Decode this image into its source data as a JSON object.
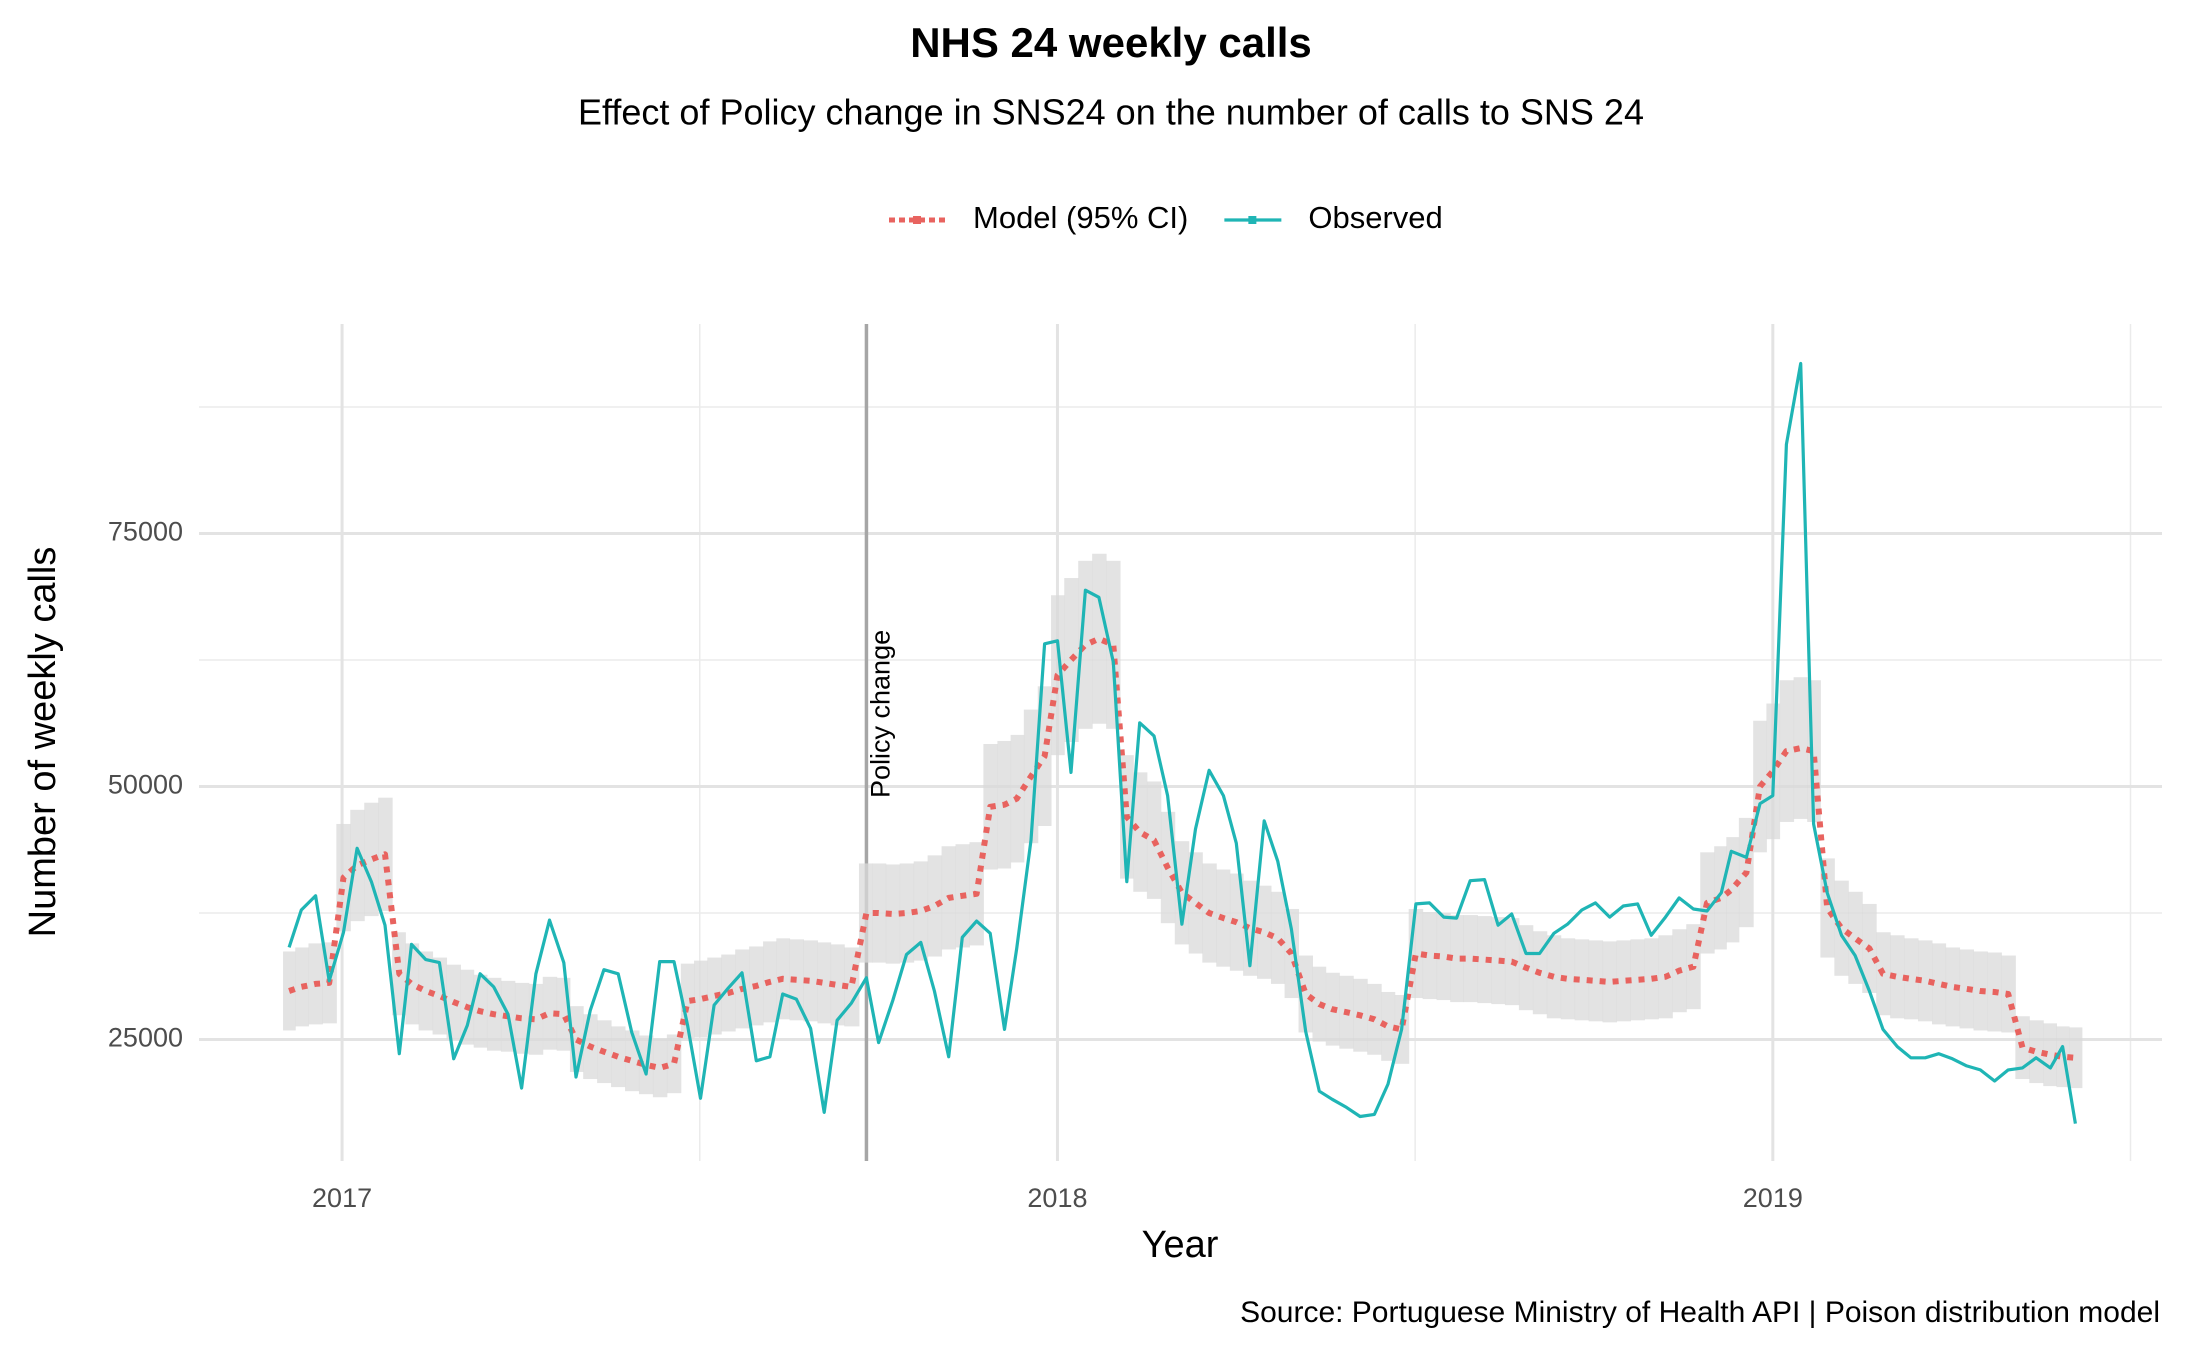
{
  "chart_data": {
    "type": "line",
    "title": "NHS 24 weekly calls",
    "subtitle": "Effect of Policy change in SNS24 on the number of calls to SNS 24",
    "x_label": "Year",
    "y_label": "Number of weekly calls",
    "caption": "Source: Portuguese Ministry of Health API  | Poison distribution model",
    "legend": "top",
    "grid": true,
    "xlim": [
      2016.8,
      2019.544
    ],
    "ylim": [
      13000,
      95700
    ],
    "xticks": [
      2017,
      2018,
      2019
    ],
    "yticks": [
      25000,
      50000,
      75000
    ],
    "x_minor_grid": [
      2017.5,
      2018.5,
      2019.5
    ],
    "y_minor_grid": [
      37500,
      62500,
      87500
    ],
    "annotations": [
      {
        "text": "Policy change",
        "x": 2017.733,
        "color": "#a6a6a6"
      }
    ],
    "x": [
      2016.926,
      2016.943,
      2016.963,
      2016.982,
      2017.002,
      2017.021,
      2017.041,
      2017.06,
      2017.08,
      2017.097,
      2017.117,
      2017.136,
      2017.156,
      2017.175,
      2017.193,
      2017.212,
      2017.232,
      2017.251,
      2017.271,
      2017.29,
      2017.31,
      2017.327,
      2017.347,
      2017.366,
      2017.386,
      2017.405,
      2017.425,
      2017.444,
      2017.464,
      2017.483,
      2017.501,
      2017.52,
      2017.54,
      2017.559,
      2017.579,
      2017.598,
      2017.616,
      2017.635,
      2017.655,
      2017.674,
      2017.692,
      2017.712,
      2017.733,
      2017.75,
      2017.77,
      2017.789,
      2017.809,
      2017.828,
      2017.848,
      2017.867,
      2017.887,
      2017.906,
      2017.926,
      2017.943,
      2017.963,
      2017.982,
      2018.0,
      2018.019,
      2018.039,
      2018.058,
      2018.078,
      2018.097,
      2018.115,
      2018.135,
      2018.154,
      2018.174,
      2018.193,
      2018.212,
      2018.232,
      2018.25,
      2018.269,
      2018.289,
      2018.308,
      2018.327,
      2018.347,
      2018.366,
      2018.384,
      2018.404,
      2018.423,
      2018.443,
      2018.462,
      2018.481,
      2018.501,
      2018.52,
      2018.54,
      2018.558,
      2018.577,
      2018.597,
      2018.616,
      2018.635,
      2018.655,
      2018.674,
      2018.694,
      2018.713,
      2018.733,
      2018.752,
      2018.772,
      2018.791,
      2018.811,
      2018.83,
      2018.85,
      2018.869,
      2018.889,
      2018.908,
      2018.928,
      2018.942,
      2018.963,
      2018.982,
      2019.0,
      2019.019,
      2019.039,
      2019.057,
      2019.076,
      2019.096,
      2019.115,
      2019.135,
      2019.154,
      2019.174,
      2019.193,
      2019.213,
      2019.232,
      2019.251,
      2019.271,
      2019.29,
      2019.31,
      2019.329,
      2019.349,
      2019.368,
      2019.388,
      2019.405,
      2019.423
    ],
    "series": [
      {
        "name": "Model (95% CI)",
        "color": "#e8635f",
        "band_color": "#d9d9d9",
        "values": [
          29800,
          30200,
          30500,
          30600,
          41000,
          42200,
          42800,
          43300,
          31500,
          30500,
          29800,
          29300,
          28700,
          28200,
          27800,
          27500,
          27300,
          27100,
          27000,
          27600,
          27500,
          25000,
          24300,
          23800,
          23300,
          22900,
          22500,
          22200,
          22600,
          28800,
          29000,
          29300,
          29600,
          30000,
          30300,
          30700,
          31000,
          30900,
          30800,
          30600,
          30400,
          30200,
          37500,
          37500,
          37400,
          37500,
          37700,
          38200,
          39000,
          39200,
          39400,
          48000,
          48200,
          48800,
          51000,
          53000,
          61000,
          62500,
          64000,
          64600,
          64000,
          47000,
          45500,
          44700,
          42000,
          39500,
          38500,
          37500,
          37000,
          36600,
          36000,
          35600,
          35000,
          33500,
          29500,
          28500,
          28000,
          27700,
          27400,
          27000,
          26300,
          26000,
          33500,
          33300,
          33200,
          33000,
          33000,
          32900,
          32800,
          32700,
          32100,
          31600,
          31200,
          31000,
          30900,
          30800,
          30700,
          30800,
          30900,
          31000,
          31200,
          31800,
          32200,
          38500,
          39000,
          39800,
          41500,
          50000,
          51500,
          53500,
          53800,
          53500,
          38000,
          36000,
          35000,
          34000,
          31500,
          31200,
          31000,
          30800,
          30500,
          30200,
          30000,
          29800,
          29700,
          29500,
          24200,
          23800,
          23500,
          23300,
          23200
        ],
        "lower": [
          25900,
          26300,
          26500,
          26600,
          35700,
          36700,
          37200,
          37700,
          27400,
          26500,
          25900,
          25500,
          25000,
          24500,
          24200,
          23900,
          23800,
          23600,
          23500,
          24000,
          23900,
          21800,
          21100,
          20700,
          20300,
          19900,
          19600,
          19300,
          19700,
          25100,
          25200,
          25500,
          25800,
          26100,
          26400,
          26700,
          27000,
          26900,
          26800,
          26600,
          26400,
          26300,
          32600,
          32600,
          32500,
          32600,
          32800,
          33200,
          33900,
          34100,
          34300,
          41800,
          41900,
          42500,
          44400,
          46100,
          53100,
          54400,
          55700,
          56200,
          55700,
          40900,
          39600,
          38900,
          36500,
          34400,
          33500,
          32600,
          32200,
          31800,
          31300,
          31000,
          30500,
          29100,
          25700,
          24800,
          24400,
          24100,
          23800,
          23500,
          22900,
          22600,
          29100,
          29000,
          28900,
          28700,
          28700,
          28600,
          28500,
          28400,
          27900,
          27500,
          27100,
          27000,
          26900,
          26800,
          26700,
          26800,
          26900,
          27000,
          27100,
          27700,
          28000,
          33500,
          33900,
          34600,
          36100,
          43500,
          44800,
          46500,
          46800,
          46500,
          33100,
          31300,
          30500,
          29600,
          27400,
          27100,
          27000,
          26800,
          26500,
          26300,
          26100,
          25900,
          25800,
          25700,
          21100,
          20700,
          20400,
          20300,
          20200
        ],
        "upper": [
          33700,
          34100,
          34500,
          34600,
          46300,
          47700,
          48400,
          48900,
          35600,
          34500,
          33700,
          33100,
          32400,
          31900,
          31400,
          31100,
          30800,
          30600,
          30500,
          31200,
          31100,
          28300,
          27500,
          26900,
          26300,
          25900,
          25400,
          25100,
          25500,
          32500,
          32800,
          33100,
          33400,
          33900,
          34200,
          34700,
          35000,
          34900,
          34800,
          34600,
          34400,
          34100,
          42400,
          42400,
          42300,
          42400,
          42600,
          43200,
          44100,
          44300,
          44500,
          54200,
          54500,
          55100,
          57600,
          59900,
          68900,
          70600,
          72300,
          73000,
          72300,
          53100,
          51400,
          50500,
          47500,
          44600,
          43500,
          42400,
          41800,
          41400,
          40700,
          40200,
          39600,
          37900,
          33300,
          32200,
          31600,
          31300,
          31000,
          30500,
          29700,
          29400,
          37900,
          37600,
          37500,
          37300,
          37300,
          37200,
          37100,
          37000,
          36300,
          35700,
          35300,
          35000,
          34900,
          34800,
          34700,
          34800,
          34900,
          35000,
          35300,
          35900,
          36400,
          43500,
          44100,
          45000,
          46900,
          56500,
          58200,
          60500,
          60800,
          60500,
          42900,
          40700,
          39600,
          38400,
          35600,
          35300,
          35000,
          34800,
          34500,
          34100,
          33900,
          33700,
          33600,
          33300,
          27300,
          26900,
          26600,
          26300,
          26200
        ]
      },
      {
        "name": "Observed",
        "color": "#1fb5b5",
        "values": [
          34100,
          37800,
          39200,
          30800,
          35600,
          43900,
          40600,
          36300,
          23600,
          34400,
          32900,
          32600,
          23100,
          26400,
          31500,
          30200,
          27500,
          20200,
          31500,
          36800,
          32600,
          21300,
          27900,
          31900,
          31500,
          25700,
          21600,
          32700,
          32700,
          26400,
          19200,
          28400,
          30100,
          31600,
          22900,
          23300,
          29500,
          29000,
          26100,
          17800,
          26900,
          28600,
          31100,
          24700,
          28900,
          33400,
          34600,
          29800,
          23300,
          35100,
          36700,
          35500,
          26000,
          34000,
          44700,
          64100,
          64400,
          51400,
          69400,
          68700,
          62300,
          40600,
          56300,
          55000,
          49100,
          36400,
          45800,
          51600,
          49100,
          44400,
          32300,
          46600,
          42600,
          35900,
          25800,
          19900,
          19100,
          18300,
          17400,
          17600,
          20600,
          26000,
          38400,
          38500,
          37100,
          37000,
          40700,
          40800,
          36300,
          37400,
          33500,
          33500,
          35500,
          36400,
          37800,
          38500,
          37100,
          38200,
          38400,
          35300,
          37100,
          39000,
          37900,
          37700,
          39500,
          43600,
          43000,
          48300,
          49100,
          83800,
          91800,
          46300,
          39500,
          35300,
          33300,
          29800,
          26000,
          24300,
          23200,
          23200,
          23600,
          23100,
          22400,
          22000,
          20900,
          22000,
          22200,
          23200,
          22200,
          24300,
          16700
        ]
      }
    ]
  }
}
